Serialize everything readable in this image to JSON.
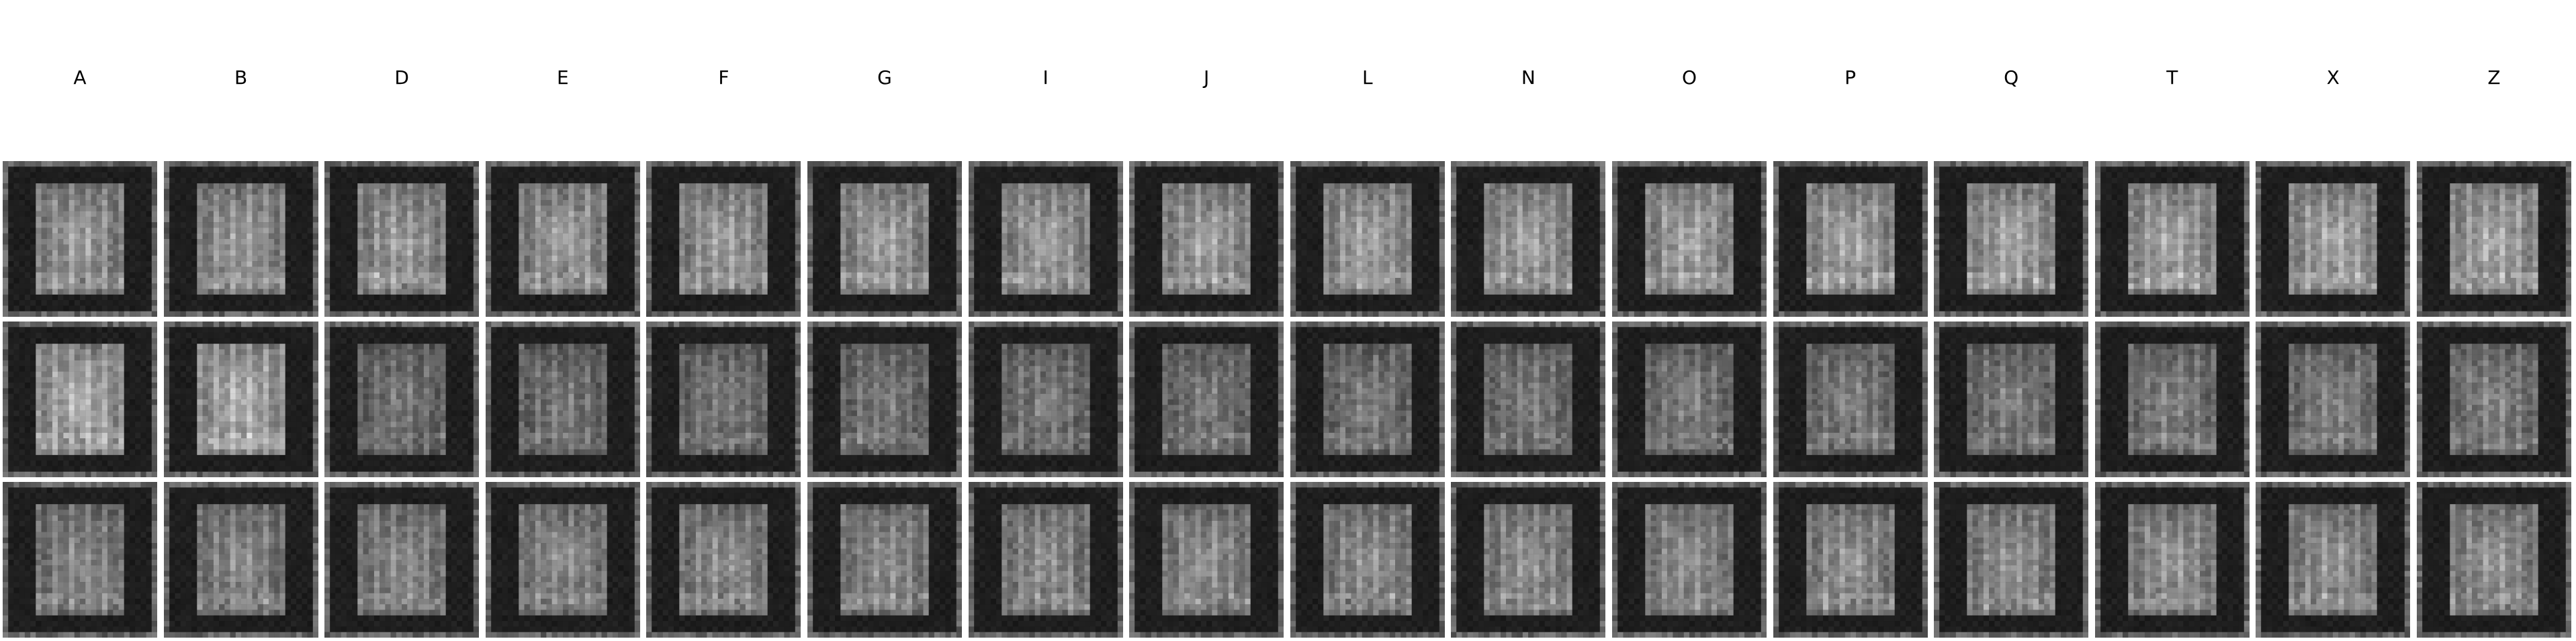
{
  "columns": [
    "A",
    "B",
    "D",
    "E",
    "F",
    "G",
    "I",
    "J",
    "L",
    "N",
    "O",
    "P",
    "Q",
    "T",
    "X",
    "Z"
  ],
  "rows": 3
}
